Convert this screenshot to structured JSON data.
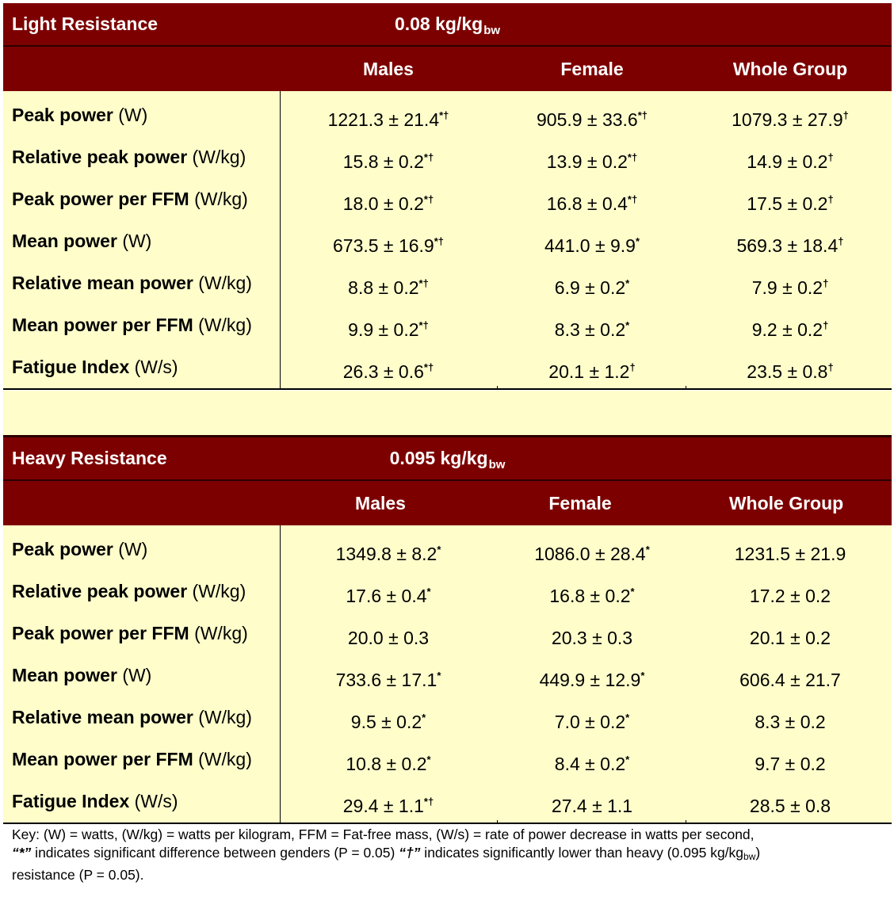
{
  "tables": [
    {
      "title": "Light Resistance",
      "load_value": "0.08 kg/kg",
      "load_sub": "bw",
      "columns": [
        "Males",
        "Female",
        "Whole Group"
      ],
      "rows": [
        {
          "name": "Peak power",
          "unit": "(W)",
          "cells": [
            {
              "v": "1221.3 ± 21.4",
              "m": "*†"
            },
            {
              "v": "905.9 ± 33.6",
              "m": "*†"
            },
            {
              "v": "1079.3 ± 27.9",
              "m": "†"
            }
          ]
        },
        {
          "name": "Relative peak power",
          "unit": "(W/kg)",
          "cells": [
            {
              "v": "15.8 ± 0.2",
              "m": "*†"
            },
            {
              "v": "13.9 ± 0.2",
              "m": "*†"
            },
            {
              "v": "14.9 ± 0.2",
              "m": "†"
            }
          ]
        },
        {
          "name": "Peak power per FFM",
          "unit": "(W/kg)",
          "cells": [
            {
              "v": "18.0 ± 0.2",
              "m": "*†"
            },
            {
              "v": "16.8 ± 0.4",
              "m": "*†"
            },
            {
              "v": "17.5 ± 0.2",
              "m": "†"
            }
          ]
        },
        {
          "name": "Mean power",
          "unit": "(W)",
          "cells": [
            {
              "v": "673.5 ± 16.9",
              "m": "*†"
            },
            {
              "v": "441.0 ± 9.9",
              "m": "*"
            },
            {
              "v": "569.3 ± 18.4",
              "m": "†"
            }
          ]
        },
        {
          "name": "Relative mean power",
          "unit": "(W/kg)",
          "cells": [
            {
              "v": "8.8 ± 0.2",
              "m": "*†"
            },
            {
              "v": "6.9 ± 0.2",
              "m": "*"
            },
            {
              "v": "7.9 ± 0.2",
              "m": "†"
            }
          ]
        },
        {
          "name": "Mean power per FFM",
          "unit": "(W/kg)",
          "cells": [
            {
              "v": "9.9 ± 0.2",
              "m": "*†"
            },
            {
              "v": "8.3 ± 0.2",
              "m": "*"
            },
            {
              "v": "9.2 ± 0.2",
              "m": "†"
            }
          ]
        },
        {
          "name": "Fatigue Index",
          "unit": "(W/s)",
          "cells": [
            {
              "v": "26.3 ± 0.6",
              "m": "*†"
            },
            {
              "v": "20.1 ± 1.2",
              "m": "†"
            },
            {
              "v": "23.5 ± 0.8",
              "m": "†"
            }
          ]
        }
      ]
    },
    {
      "title": "Heavy Resistance",
      "load_value": "0.095 kg/kg",
      "load_sub": "bw",
      "columns": [
        "Males",
        "Female",
        "Whole Group"
      ],
      "rows": [
        {
          "name": "Peak power",
          "unit": "(W)",
          "cells": [
            {
              "v": "1349.8 ± 8.2",
              "m": "*"
            },
            {
              "v": "1086.0 ± 28.4",
              "m": "*"
            },
            {
              "v": "1231.5 ± 21.9",
              "m": ""
            }
          ]
        },
        {
          "name": "Relative peak power",
          "unit": "(W/kg)",
          "cells": [
            {
              "v": "17.6 ± 0.4",
              "m": "*"
            },
            {
              "v": "16.8 ± 0.2",
              "m": "*"
            },
            {
              "v": "17.2 ± 0.2",
              "m": ""
            }
          ]
        },
        {
          "name": "Peak power per FFM",
          "unit": "(W/kg)",
          "cells": [
            {
              "v": "20.0 ± 0.3",
              "m": ""
            },
            {
              "v": "20.3 ± 0.3",
              "m": ""
            },
            {
              "v": "20.1 ± 0.2",
              "m": ""
            }
          ]
        },
        {
          "name": "Mean power",
          "unit": "(W)",
          "cells": [
            {
              "v": "733.6 ± 17.1",
              "m": "*"
            },
            {
              "v": "449.9 ± 12.9",
              "m": "*"
            },
            {
              "v": "606.4 ± 21.7",
              "m": ""
            }
          ]
        },
        {
          "name": "Relative mean power",
          "unit": "(W/kg)",
          "cells": [
            {
              "v": "9.5 ± 0.2",
              "m": "*"
            },
            {
              "v": "7.0 ± 0.2",
              "m": "*"
            },
            {
              "v": "8.3 ± 0.2",
              "m": ""
            }
          ]
        },
        {
          "name": "Mean power per FFM",
          "unit": "(W/kg)",
          "cells": [
            {
              "v": "10.8 ± 0.2",
              "m": "*"
            },
            {
              "v": "8.4 ± 0.2",
              "m": "*"
            },
            {
              "v": "9.7 ± 0.2",
              "m": ""
            }
          ]
        },
        {
          "name": "Fatigue Index",
          "unit": "(W/s)",
          "cells": [
            {
              "v": "29.4 ± 1.1",
              "m": "*†"
            },
            {
              "v": "27.4 ± 1.1",
              "m": ""
            },
            {
              "v": "28.5 ± 0.8",
              "m": ""
            }
          ]
        }
      ]
    }
  ],
  "key": {
    "line1": "Key: (W) = watts, (W/kg) = watts per kilogram, FFM = Fat-free mass, (W/s) = rate of power decrease in watts per second,",
    "star_symbol": "“*”",
    "star_text": " indicates significant difference between genders (P = 0.05) ",
    "dagger_symbol": "“†”",
    "dagger_text": " indicates significantly lower than heavy (0.095 kg/kg",
    "dagger_sub": "bw",
    "dagger_end": ")",
    "line3": "resistance (P = 0.05)."
  },
  "colors": {
    "header_bg": "#7d0000",
    "body_bg": "#fffecb",
    "header_text": "#ffffff"
  }
}
